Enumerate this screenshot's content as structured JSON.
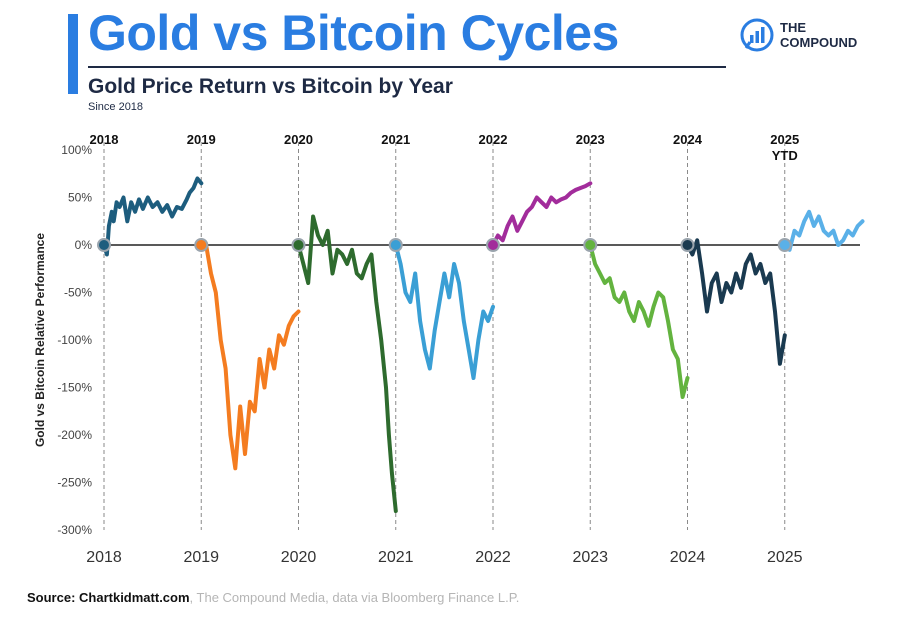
{
  "header": {
    "title": "Gold vs Bitcoin Cycles",
    "subtitle": "Gold Price Return vs Bitcoin by Year",
    "since": "Since 2018",
    "logo_line1": "THE",
    "logo_line2": "COMPOUND",
    "logo_icon": "bar-chart-bubble-icon"
  },
  "footer": {
    "source_bold": "Source: Chartkidmatt.com",
    "source_rest": ", The Compound Media, data via Bloomberg Finance L.P."
  },
  "colors": {
    "title": "#2a7de1",
    "text": "#1e2a44",
    "zero_line": "#222222",
    "divider": "#8a8a8a"
  },
  "chart_data": {
    "type": "line",
    "title": "Gold Price Return vs Bitcoin by Year",
    "ylabel": "Gold vs Bitcoin Relative Performance",
    "xlabel": "",
    "x_ticks": [
      "2018",
      "2019",
      "2020",
      "2021",
      "2022",
      "2023",
      "2024",
      "2025"
    ],
    "top_labels": [
      {
        "year": 2018,
        "text": "2018"
      },
      {
        "year": 2019,
        "text": "2019"
      },
      {
        "year": 2020,
        "text": "2020"
      },
      {
        "year": 2021,
        "text": "2021"
      },
      {
        "year": 2022,
        "text": "2022"
      },
      {
        "year": 2023,
        "text": "2023"
      },
      {
        "year": 2024,
        "text": "2024"
      },
      {
        "year": 2025,
        "text": "2025",
        "text2": "YTD"
      }
    ],
    "y_ticks": [
      100,
      50,
      0,
      -50,
      -100,
      -150,
      -200,
      -250,
      -300
    ],
    "y_tick_labels": [
      "100%",
      "50%",
      "0%",
      "-50%",
      "-100%",
      "-150%",
      "-200%",
      "-250%",
      "-300%"
    ],
    "xlim": [
      2018,
      2026
    ],
    "ylim": [
      -300,
      100
    ],
    "grid": false,
    "series": [
      {
        "year": 2018,
        "color": "#1d5d7e",
        "x": [
          2018.0,
          2018.03,
          2018.05,
          2018.08,
          2018.1,
          2018.13,
          2018.16,
          2018.2,
          2018.24,
          2018.28,
          2018.32,
          2018.36,
          2018.4,
          2018.45,
          2018.5,
          2018.55,
          2018.6,
          2018.65,
          2018.7,
          2018.75,
          2018.8,
          2018.85,
          2018.88,
          2018.92,
          2018.96,
          2019.0
        ],
        "y": [
          0,
          -10,
          20,
          35,
          25,
          45,
          40,
          50,
          25,
          45,
          35,
          48,
          38,
          50,
          40,
          45,
          35,
          42,
          30,
          40,
          38,
          48,
          55,
          60,
          70,
          65
        ]
      },
      {
        "year": 2019,
        "color": "#f47c20",
        "x": [
          2019.0,
          2019.05,
          2019.1,
          2019.15,
          2019.2,
          2019.25,
          2019.3,
          2019.35,
          2019.4,
          2019.45,
          2019.5,
          2019.55,
          2019.6,
          2019.65,
          2019.7,
          2019.75,
          2019.8,
          2019.85,
          2019.9,
          2019.95,
          2020.0
        ],
        "y": [
          5,
          0,
          -30,
          -50,
          -100,
          -130,
          -200,
          -235,
          -170,
          -220,
          -165,
          -175,
          -120,
          -150,
          -110,
          -130,
          -95,
          -105,
          -85,
          -75,
          -70
        ]
      },
      {
        "year": 2020,
        "color": "#2e6b2e",
        "x": [
          2020.0,
          2020.05,
          2020.1,
          2020.15,
          2020.2,
          2020.25,
          2020.3,
          2020.35,
          2020.4,
          2020.45,
          2020.5,
          2020.55,
          2020.6,
          2020.65,
          2020.7,
          2020.75,
          2020.8,
          2020.85,
          2020.9,
          2020.93,
          2020.96,
          2021.0
        ],
        "y": [
          0,
          -20,
          -40,
          30,
          10,
          0,
          15,
          -30,
          -5,
          -10,
          -20,
          -5,
          -30,
          -35,
          -20,
          -10,
          -60,
          -100,
          -150,
          -200,
          -240,
          -280
        ]
      },
      {
        "year": 2021,
        "color": "#3a9fd5",
        "x": [
          2021.0,
          2021.05,
          2021.1,
          2021.15,
          2021.2,
          2021.25,
          2021.3,
          2021.35,
          2021.4,
          2021.45,
          2021.5,
          2021.55,
          2021.6,
          2021.65,
          2021.7,
          2021.75,
          2021.8,
          2021.85,
          2021.9,
          2021.95,
          2022.0
        ],
        "y": [
          0,
          -20,
          -50,
          -60,
          -30,
          -80,
          -110,
          -130,
          -90,
          -60,
          -30,
          -55,
          -20,
          -40,
          -80,
          -110,
          -140,
          -100,
          -70,
          -80,
          -65
        ]
      },
      {
        "year": 2022,
        "color": "#a22c9b",
        "x": [
          2022.0,
          2022.05,
          2022.1,
          2022.15,
          2022.2,
          2022.25,
          2022.3,
          2022.35,
          2022.4,
          2022.45,
          2022.5,
          2022.55,
          2022.6,
          2022.65,
          2022.7,
          2022.75,
          2022.8,
          2022.85,
          2022.9,
          2022.95,
          2023.0
        ],
        "y": [
          0,
          10,
          5,
          20,
          30,
          15,
          25,
          35,
          40,
          50,
          45,
          40,
          50,
          45,
          48,
          50,
          55,
          58,
          60,
          62,
          65
        ]
      },
      {
        "year": 2023,
        "color": "#63b33f",
        "x": [
          2023.0,
          2023.05,
          2023.1,
          2023.15,
          2023.2,
          2023.25,
          2023.3,
          2023.35,
          2023.4,
          2023.45,
          2023.5,
          2023.55,
          2023.6,
          2023.65,
          2023.7,
          2023.75,
          2023.8,
          2023.85,
          2023.9,
          2023.95,
          2024.0
        ],
        "y": [
          0,
          -20,
          -30,
          -40,
          -35,
          -55,
          -60,
          -50,
          -70,
          -80,
          -60,
          -70,
          -85,
          -65,
          -50,
          -55,
          -80,
          -110,
          -120,
          -160,
          -140
        ]
      },
      {
        "year": 2024,
        "color": "#1a3a50",
        "x": [
          2024.0,
          2024.05,
          2024.1,
          2024.15,
          2024.2,
          2024.25,
          2024.3,
          2024.35,
          2024.4,
          2024.45,
          2024.5,
          2024.55,
          2024.6,
          2024.65,
          2024.7,
          2024.75,
          2024.8,
          2024.85,
          2024.9,
          2024.95,
          2025.0
        ],
        "y": [
          0,
          -10,
          5,
          -30,
          -70,
          -40,
          -30,
          -60,
          -40,
          -50,
          -30,
          -45,
          -20,
          -10,
          -30,
          -20,
          -40,
          -30,
          -70,
          -125,
          -95
        ]
      },
      {
        "year": 2025,
        "color": "#5ab0e8",
        "x": [
          2025.0,
          2025.05,
          2025.1,
          2025.15,
          2025.2,
          2025.25,
          2025.3,
          2025.35,
          2025.4,
          2025.45,
          2025.5,
          2025.55,
          2025.6,
          2025.65,
          2025.7,
          2025.75,
          2025.8
        ],
        "y": [
          0,
          -5,
          15,
          10,
          25,
          35,
          20,
          30,
          15,
          10,
          15,
          0,
          5,
          15,
          10,
          20,
          25
        ]
      }
    ]
  }
}
